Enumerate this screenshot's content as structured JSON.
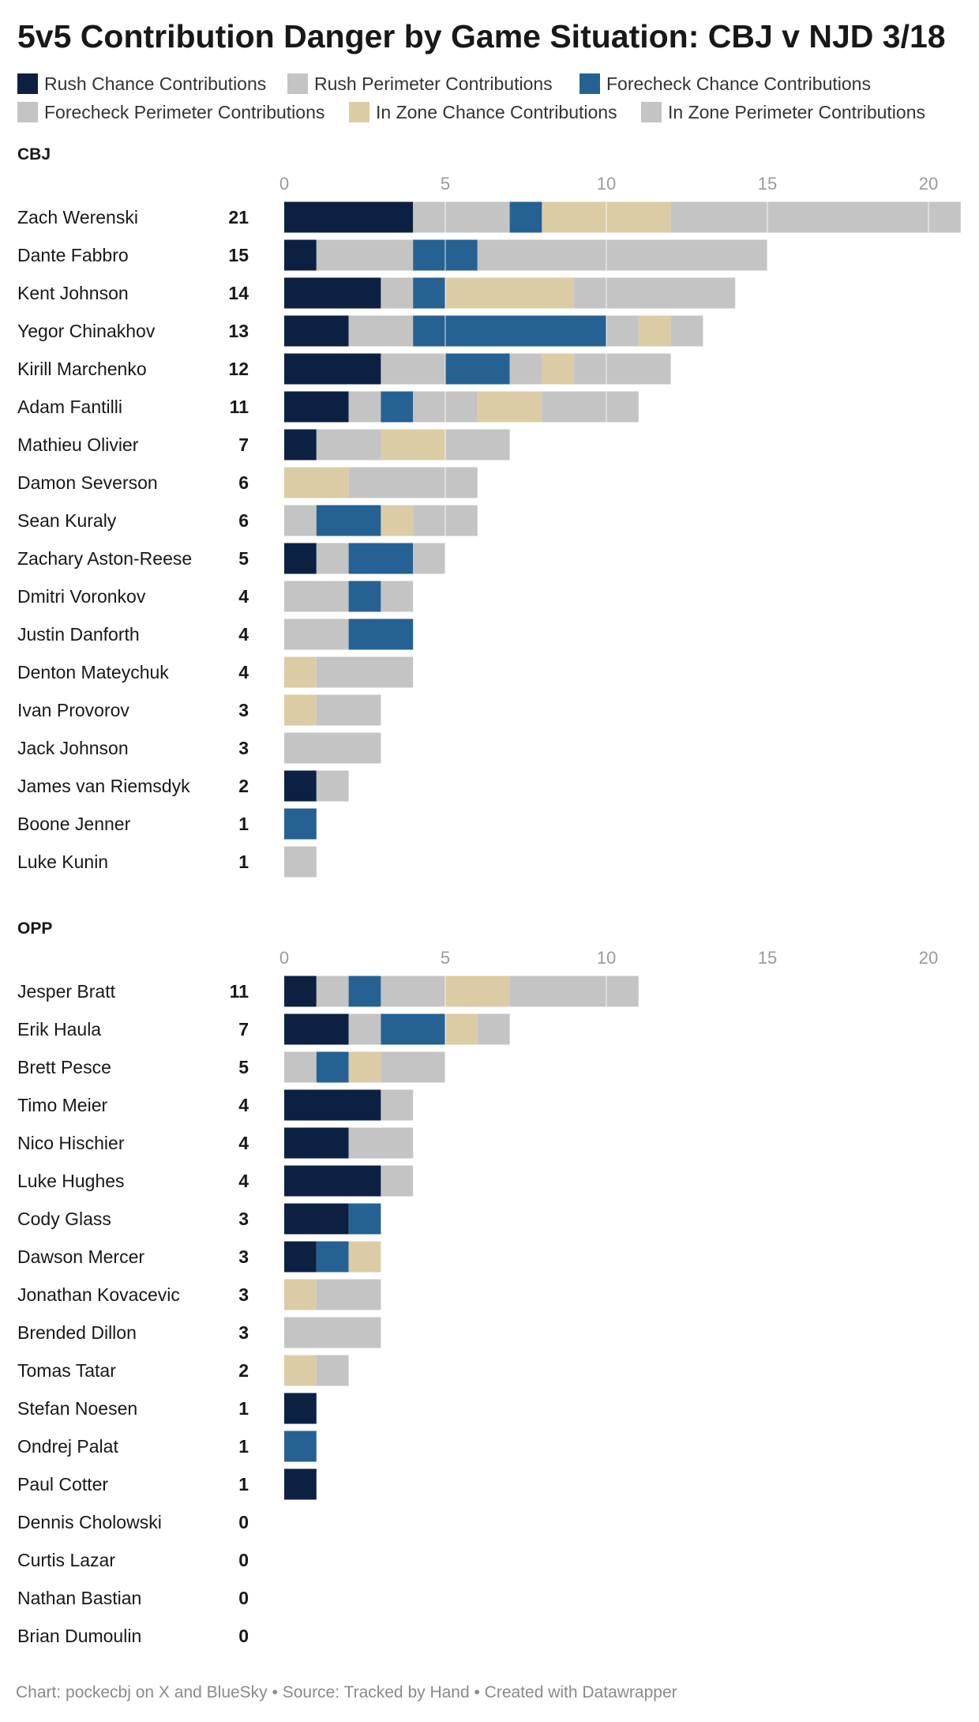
{
  "title": "5v5 Contribution Danger by Game Situation: CBJ v NJD 3/18",
  "footer": "Chart: pockecbj on X and BlueSky • Source: Tracked by Hand • Created with Datawrapper",
  "chart_data": {
    "type": "bar",
    "orientation": "horizontal",
    "stacked": true,
    "xlim": [
      0,
      21
    ],
    "ticks": [
      0,
      5,
      10,
      15,
      20
    ],
    "grid": true,
    "legend_position": "top",
    "series": [
      {
        "name": "Rush Chance Contributions",
        "color": "#0c2142"
      },
      {
        "name": "Rush Perimeter Contributions",
        "color": "#c4c4c4"
      },
      {
        "name": "Forecheck Chance Contributions",
        "color": "#256293"
      },
      {
        "name": "Forecheck Perimeter Contributions",
        "color": "#c4c4c4"
      },
      {
        "name": "In Zone Chance Contributions",
        "color": "#dccca6"
      },
      {
        "name": "In Zone Perimeter Contributions",
        "color": "#c4c4c4"
      }
    ],
    "panels": [
      {
        "label": "CBJ",
        "players": [
          {
            "name": "Zach Werenski",
            "total": 21,
            "values": [
              4,
              3,
              1,
              0,
              4,
              9
            ]
          },
          {
            "name": "Dante Fabbro",
            "total": 15,
            "values": [
              1,
              3,
              2,
              0,
              0,
              9
            ]
          },
          {
            "name": "Kent Johnson",
            "total": 14,
            "values": [
              3,
              1,
              1,
              0,
              4,
              5
            ]
          },
          {
            "name": "Yegor Chinakhov",
            "total": 13,
            "values": [
              2,
              2,
              6,
              1,
              1,
              1
            ]
          },
          {
            "name": "Kirill Marchenko",
            "total": 12,
            "values": [
              3,
              2,
              2,
              1,
              1,
              3
            ]
          },
          {
            "name": "Adam Fantilli",
            "total": 11,
            "values": [
              2,
              1,
              1,
              2,
              2,
              3
            ]
          },
          {
            "name": "Mathieu Olivier",
            "total": 7,
            "values": [
              1,
              2,
              0,
              0,
              2,
              2
            ]
          },
          {
            "name": "Damon Severson",
            "total": 6,
            "values": [
              0,
              0,
              0,
              0,
              2,
              4
            ]
          },
          {
            "name": "Sean Kuraly",
            "total": 6,
            "values": [
              0,
              1,
              2,
              0,
              1,
              2
            ]
          },
          {
            "name": "Zachary Aston-Reese",
            "total": 5,
            "values": [
              1,
              1,
              2,
              0,
              0,
              1
            ]
          },
          {
            "name": "Dmitri Voronkov",
            "total": 4,
            "values": [
              0,
              2,
              1,
              1,
              0,
              0
            ]
          },
          {
            "name": "Justin Danforth",
            "total": 4,
            "values": [
              0,
              2,
              2,
              0,
              0,
              0
            ]
          },
          {
            "name": "Denton Mateychuk",
            "total": 4,
            "values": [
              0,
              0,
              0,
              0,
              1,
              3
            ]
          },
          {
            "name": "Ivan Provorov",
            "total": 3,
            "values": [
              0,
              0,
              0,
              0,
              1,
              2
            ]
          },
          {
            "name": "Jack Johnson",
            "total": 3,
            "values": [
              0,
              0,
              0,
              0,
              0,
              3
            ]
          },
          {
            "name": "James van Riemsdyk",
            "total": 2,
            "values": [
              1,
              1,
              0,
              0,
              0,
              0
            ]
          },
          {
            "name": "Boone Jenner",
            "total": 1,
            "values": [
              0,
              0,
              1,
              0,
              0,
              0
            ]
          },
          {
            "name": "Luke Kunin",
            "total": 1,
            "values": [
              0,
              0,
              0,
              0,
              0,
              1
            ]
          }
        ]
      },
      {
        "label": "OPP",
        "players": [
          {
            "name": "Jesper Bratt",
            "total": 11,
            "values": [
              1,
              1,
              1,
              2,
              2,
              4
            ]
          },
          {
            "name": "Erik Haula",
            "total": 7,
            "values": [
              2,
              1,
              2,
              0,
              1,
              1
            ]
          },
          {
            "name": "Brett Pesce",
            "total": 5,
            "values": [
              0,
              1,
              1,
              0,
              1,
              2
            ]
          },
          {
            "name": "Timo Meier",
            "total": 4,
            "values": [
              3,
              1,
              0,
              0,
              0,
              0
            ]
          },
          {
            "name": "Nico Hischier",
            "total": 4,
            "values": [
              2,
              2,
              0,
              0,
              0,
              0
            ]
          },
          {
            "name": "Luke Hughes",
            "total": 4,
            "values": [
              3,
              1,
              0,
              0,
              0,
              0
            ]
          },
          {
            "name": "Cody Glass",
            "total": 3,
            "values": [
              2,
              0,
              1,
              0,
              0,
              0
            ]
          },
          {
            "name": "Dawson Mercer",
            "total": 3,
            "values": [
              1,
              0,
              1,
              0,
              1,
              0
            ]
          },
          {
            "name": "Jonathan Kovacevic",
            "total": 3,
            "values": [
              0,
              0,
              0,
              0,
              1,
              2
            ]
          },
          {
            "name": "Brended Dillon",
            "total": 3,
            "values": [
              0,
              0,
              0,
              0,
              0,
              3
            ]
          },
          {
            "name": "Tomas Tatar",
            "total": 2,
            "values": [
              0,
              0,
              0,
              0,
              1,
              1
            ]
          },
          {
            "name": "Stefan Noesen",
            "total": 1,
            "values": [
              1,
              0,
              0,
              0,
              0,
              0
            ]
          },
          {
            "name": "Ondrej Palat",
            "total": 1,
            "values": [
              0,
              0,
              1,
              0,
              0,
              0
            ]
          },
          {
            "name": "Paul Cotter",
            "total": 1,
            "values": [
              1,
              0,
              0,
              0,
              0,
              0
            ]
          },
          {
            "name": "Dennis Cholowski",
            "total": 0,
            "values": [
              0,
              0,
              0,
              0,
              0,
              0
            ]
          },
          {
            "name": "Curtis Lazar",
            "total": 0,
            "values": [
              0,
              0,
              0,
              0,
              0,
              0
            ]
          },
          {
            "name": "Nathan Bastian",
            "total": 0,
            "values": [
              0,
              0,
              0,
              0,
              0,
              0
            ]
          },
          {
            "name": "Brian Dumoulin",
            "total": 0,
            "values": [
              0,
              0,
              0,
              0,
              0,
              0
            ]
          }
        ]
      }
    ]
  }
}
